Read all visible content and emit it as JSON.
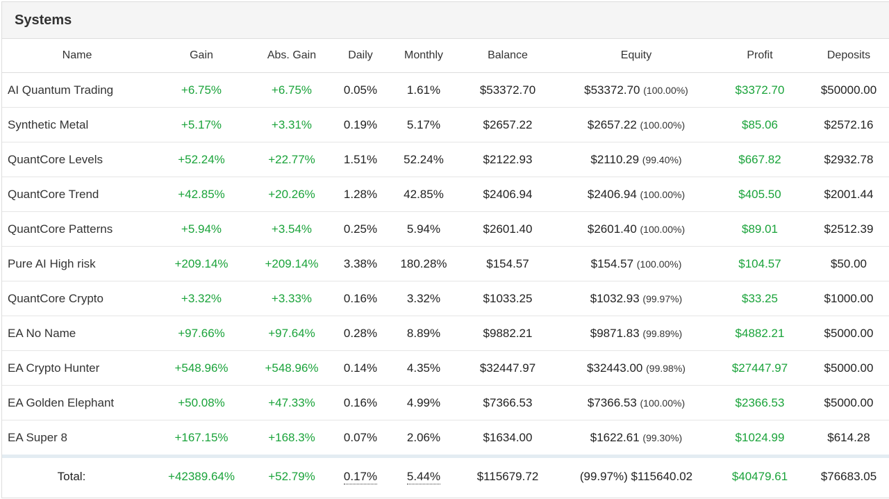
{
  "panel": {
    "title": "Systems"
  },
  "columns": [
    "Name",
    "Gain",
    "Abs. Gain",
    "Daily",
    "Monthly",
    "Balance",
    "Equity",
    "Profit",
    "Deposits"
  ],
  "rows": [
    {
      "name": "AI Quantum Trading",
      "gain": "+6.75%",
      "abs_gain": "+6.75%",
      "daily": "0.05%",
      "monthly": "1.61%",
      "balance": "$53372.70",
      "equity": "$53372.70",
      "equity_pct": "(100.00%)",
      "profit": "$3372.70",
      "deposits": "$50000.00"
    },
    {
      "name": "Synthetic Metal",
      "gain": "+5.17%",
      "abs_gain": "+3.31%",
      "daily": "0.19%",
      "monthly": "5.17%",
      "balance": "$2657.22",
      "equity": "$2657.22",
      "equity_pct": "(100.00%)",
      "profit": "$85.06",
      "deposits": "$2572.16"
    },
    {
      "name": "QuantCore Levels",
      "gain": "+52.24%",
      "abs_gain": "+22.77%",
      "daily": "1.51%",
      "monthly": "52.24%",
      "balance": "$2122.93",
      "equity": "$2110.29",
      "equity_pct": "(99.40%)",
      "profit": "$667.82",
      "deposits": "$2932.78"
    },
    {
      "name": "QuantCore Trend",
      "gain": "+42.85%",
      "abs_gain": "+20.26%",
      "daily": "1.28%",
      "monthly": "42.85%",
      "balance": "$2406.94",
      "equity": "$2406.94",
      "equity_pct": "(100.00%)",
      "profit": "$405.50",
      "deposits": "$2001.44"
    },
    {
      "name": "QuantCore Patterns",
      "gain": "+5.94%",
      "abs_gain": "+3.54%",
      "daily": "0.25%",
      "monthly": "5.94%",
      "balance": "$2601.40",
      "equity": "$2601.40",
      "equity_pct": "(100.00%)",
      "profit": "$89.01",
      "deposits": "$2512.39"
    },
    {
      "name": "Pure AI High risk",
      "gain": "+209.14%",
      "abs_gain": "+209.14%",
      "daily": "3.38%",
      "monthly": "180.28%",
      "balance": "$154.57",
      "equity": "$154.57",
      "equity_pct": "(100.00%)",
      "profit": "$104.57",
      "deposits": "$50.00"
    },
    {
      "name": "QuantCore Crypto",
      "gain": "+3.32%",
      "abs_gain": "+3.33%",
      "daily": "0.16%",
      "monthly": "3.32%",
      "balance": "$1033.25",
      "equity": "$1032.93",
      "equity_pct": "(99.97%)",
      "profit": "$33.25",
      "deposits": "$1000.00"
    },
    {
      "name": "EA No Name",
      "gain": "+97.66%",
      "abs_gain": "+97.64%",
      "daily": "0.28%",
      "monthly": "8.89%",
      "balance": "$9882.21",
      "equity": "$9871.83",
      "equity_pct": "(99.89%)",
      "profit": "$4882.21",
      "deposits": "$5000.00"
    },
    {
      "name": "EA Crypto Hunter",
      "gain": "+548.96%",
      "abs_gain": "+548.96%",
      "daily": "0.14%",
      "monthly": "4.35%",
      "balance": "$32447.97",
      "equity": "$32443.00",
      "equity_pct": "(99.98%)",
      "profit": "$27447.97",
      "deposits": "$5000.00"
    },
    {
      "name": "EA Golden Elephant",
      "gain": "+50.08%",
      "abs_gain": "+47.33%",
      "daily": "0.16%",
      "monthly": "4.99%",
      "balance": "$7366.53",
      "equity": "$7366.53",
      "equity_pct": "(100.00%)",
      "profit": "$2366.53",
      "deposits": "$5000.00"
    },
    {
      "name": "EA Super 8",
      "gain": "+167.15%",
      "abs_gain": "+168.3%",
      "daily": "0.07%",
      "monthly": "2.06%",
      "balance": "$1634.00",
      "equity": "$1622.61",
      "equity_pct": "(99.30%)",
      "profit": "$1024.99",
      "deposits": "$614.28"
    }
  ],
  "total": {
    "label": "Total:",
    "gain": "+42389.64%",
    "abs_gain": "+52.79%",
    "daily": "0.17%",
    "monthly": "5.44%",
    "balance": "$115679.72",
    "equity": "(99.97%) $115640.02",
    "profit": "$40479.61",
    "deposits": "$76683.05"
  },
  "colors": {
    "positive": "#1aa33a",
    "header_bg": "#f5f5f5",
    "total_separator": "#e3ecf2"
  }
}
